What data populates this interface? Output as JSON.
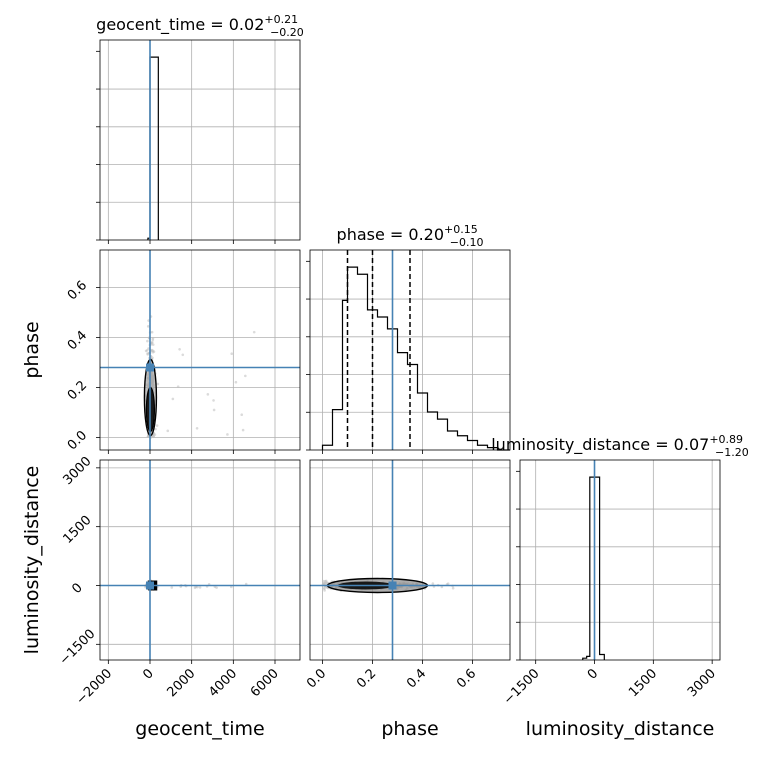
{
  "chart_data": {
    "type": "corner",
    "parameters": [
      "geocent_time",
      "phase",
      "luminosity_distance"
    ],
    "truths": {
      "geocent_time": 0,
      "phase": 0.28,
      "luminosity_distance": 0
    },
    "truth_color": "#4682b4",
    "titles": [
      {
        "param": "geocent_time",
        "label": "geocent_time = 0.02",
        "plus": "+0.21",
        "minus": "−0.20"
      },
      {
        "param": "phase",
        "label": "phase = 0.20",
        "plus": "+0.15",
        "minus": "−0.10"
      },
      {
        "param": "luminosity_distance",
        "label": "luminosity_distance = 0.07",
        "plus": "+0.89",
        "minus": "−1.20"
      }
    ],
    "axis_labels": {
      "x": [
        "geocent_time",
        "phase",
        "luminosity_distance"
      ],
      "y": [
        "phase",
        "luminosity_distance"
      ]
    },
    "ranges": {
      "geocent_time": [
        -2400,
        7200
      ],
      "phase": [
        -0.05,
        0.75
      ],
      "luminosity_distance": [
        -1900,
        3200
      ]
    },
    "ticks": {
      "geocent_time": {
        "values": [
          -2000,
          0,
          2000,
          4000,
          6000
        ],
        "labels": [
          "−2000",
          "0",
          "2000",
          "4000",
          "6000"
        ]
      },
      "phase": {
        "values": [
          0.0,
          0.2,
          0.4,
          0.6
        ],
        "labels": [
          "0.0",
          "0.2",
          "0.4",
          "0.6"
        ]
      },
      "luminosity_distance": {
        "values": [
          -1500,
          0,
          1500,
          3000
        ],
        "labels": [
          "−1500",
          "0",
          "1500",
          "3000"
        ]
      }
    },
    "quantile_lines": {
      "phase": [
        0.1,
        0.2,
        0.35
      ],
      "geocent_time": [
        0.02
      ],
      "luminosity_distance": [
        0.07
      ]
    },
    "histograms": {
      "geocent_time": {
        "edges": [
          -100,
          0,
          400
        ],
        "counts": [
          1,
          100
        ]
      },
      "phase": {
        "edges": [
          0.0,
          0.04,
          0.08,
          0.1,
          0.14,
          0.18,
          0.22,
          0.26,
          0.3,
          0.34,
          0.38,
          0.42,
          0.46,
          0.5,
          0.54,
          0.58,
          0.62,
          0.66,
          0.7,
          0.75
        ],
        "counts": [
          2,
          17,
          63,
          77,
          74,
          59,
          56,
          51,
          41,
          36,
          24,
          16,
          13,
          8,
          6,
          4,
          2,
          1,
          0
        ]
      },
      "luminosity_distance": {
        "edges": [
          -300,
          -200,
          -120,
          60,
          130,
          250
        ],
        "counts": [
          1,
          2,
          100,
          100,
          3
        ]
      }
    },
    "grid": true
  }
}
